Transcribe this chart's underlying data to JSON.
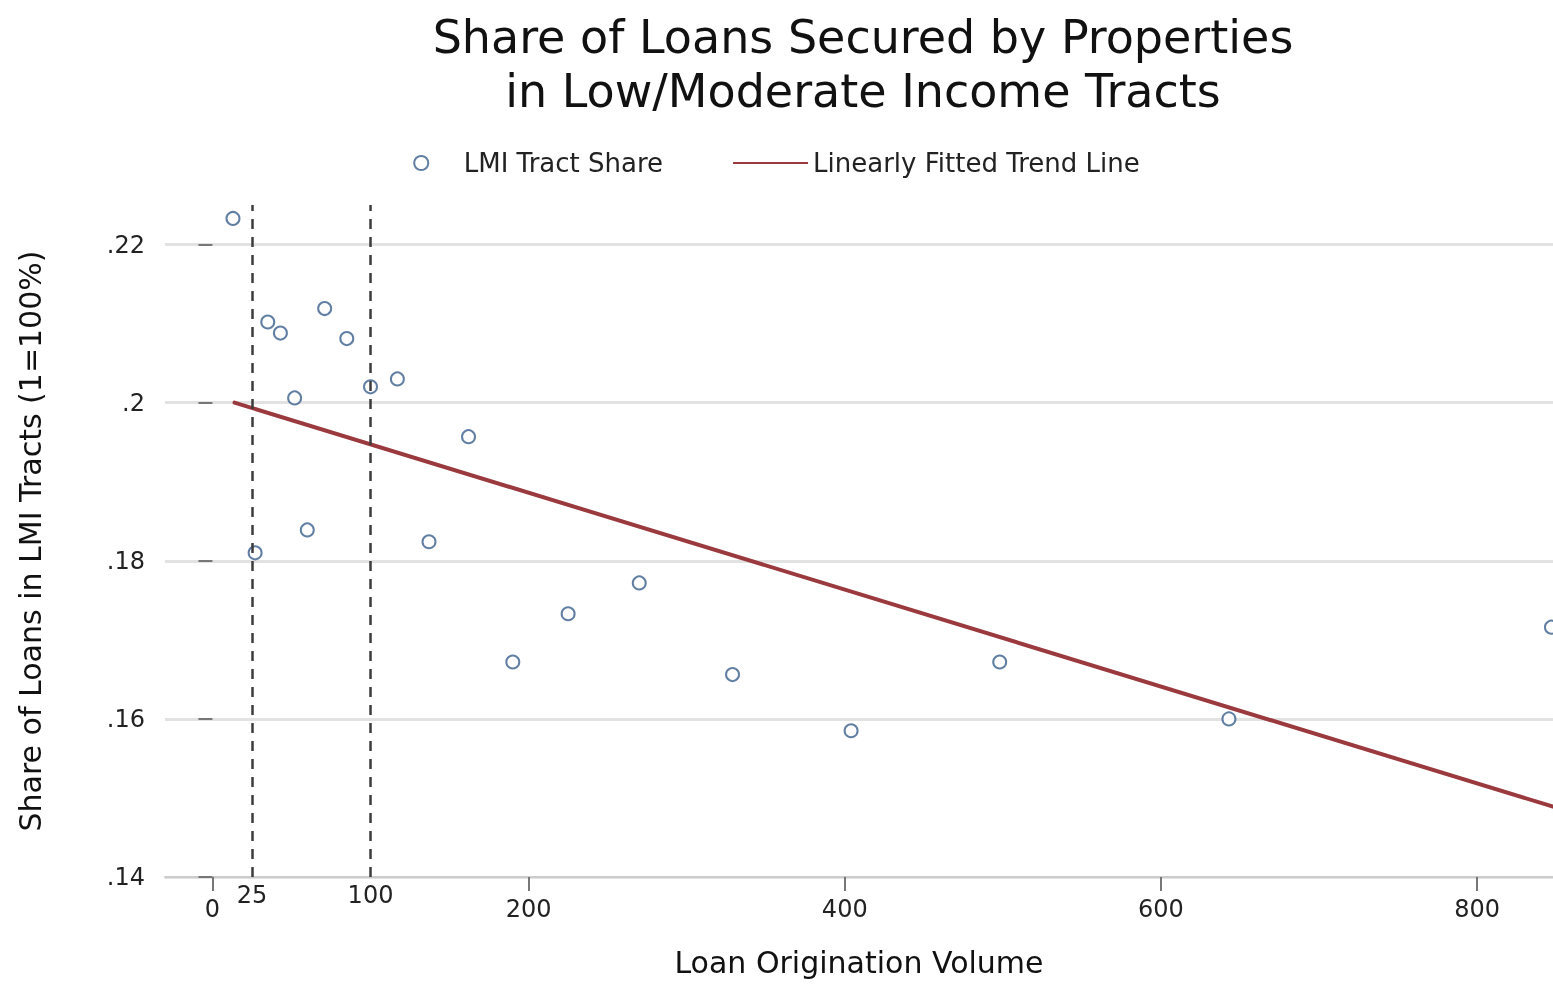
{
  "chart_data": {
    "type": "scatter",
    "title": "Share of Loans Secured by Properties\nin Low/Moderate Income Tracts",
    "xlabel": "Loan Origination Volume",
    "ylabel": "Share of Loans in LMI Tracts (1=100%)",
    "xlim": [
      -30,
      848
    ],
    "xticks": [
      0,
      200,
      400,
      600,
      800
    ],
    "ylim": [
      0.14,
      0.225
    ],
    "yticks": [
      {
        "value": 0.14,
        "label": ".14"
      },
      {
        "value": 0.16,
        "label": ".16"
      },
      {
        "value": 0.18,
        "label": ".18"
      },
      {
        "value": 0.2,
        "label": ".2"
      },
      {
        "value": 0.22,
        "label": ".22"
      }
    ],
    "grid": "y",
    "legend": "top",
    "marker": "circle",
    "series": [
      {
        "name": "LMI Tract Share",
        "color": "#3a5f8c",
        "x": [
          13,
          27,
          35,
          43,
          52,
          60,
          71,
          85,
          100,
          117,
          137,
          162,
          190,
          225,
          270,
          329,
          404,
          498,
          643,
          847
        ],
        "values": [
          0.2233,
          0.181,
          0.2102,
          0.2088,
          0.2006,
          0.1839,
          0.2119,
          0.2081,
          0.202,
          0.203,
          0.1824,
          0.1957,
          0.1672,
          0.1733,
          0.1772,
          0.1656,
          0.1585,
          0.1672,
          0.16,
          0.1716
        ]
      },
      {
        "name": "Linearly Fitted Trend Line",
        "type": "line",
        "color": "#9b3a3e",
        "line_style": "solid",
        "marker": "none",
        "x": [
          14,
          848
        ],
        "values": [
          0.2,
          0.1489
        ]
      }
    ],
    "ref_lines": [
      {
        "axis": "x",
        "value": 25,
        "label": "25",
        "color": "#3c3c3c",
        "line_style": "dashed"
      },
      {
        "axis": "x",
        "value": 100,
        "label": "100",
        "color": "#3c3c3c",
        "line_style": "dashed"
      }
    ]
  }
}
